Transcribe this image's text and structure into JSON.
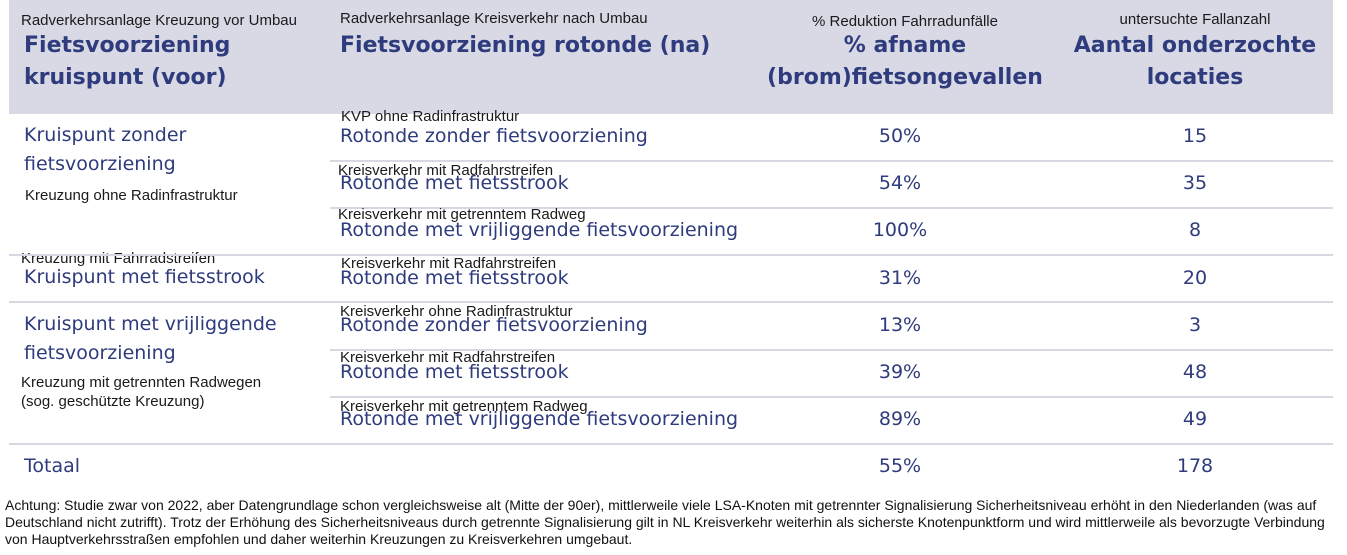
{
  "header": {
    "col1_de": "Radverkehrsanlage Kreuzung vor Umbau",
    "col1_nl_line1": "Fietsvoorziening",
    "col1_nl_line2": "kruispunt (voor)",
    "col2_de": "Radverkehrsanlage Kreisverkehr nach Umbau",
    "col2_nl": "Fietsvoorziening rotonde (na)",
    "col3_de": "% Reduktion Fahrradunfälle",
    "col3_nl_line1": "% afname",
    "col3_nl_line2": "(brom)fietsongevallen",
    "col4_de": "untersuchte Fallanzahl",
    "col4_nl_line1": "Aantal onderzochte",
    "col4_nl_line2": "locaties"
  },
  "groups": [
    {
      "nl_line1": "Kruispunt zonder",
      "nl_line2": "fietsvoorziening",
      "de_line1": "Kreuzung ohne Radinfrastruktur",
      "de_line2": ""
    },
    {
      "nl_line1": "Kruispunt met fietsstrook",
      "nl_line2": "",
      "de_line1": "Kreuzung mit Fahrradstreifen",
      "de_line2": ""
    },
    {
      "nl_line1": "Kruispunt met vrijliggende",
      "nl_line2": "fietsvoorziening",
      "de_line1": "Kreuzung mit getrennten Radwegen",
      "de_line2": "(sog. geschützte Kreuzung)"
    }
  ],
  "rows": [
    {
      "de": "KVP ohne Radinfrastruktur",
      "nl": "Rotonde zonder fietsvoorziening",
      "pct": "50%",
      "n": "15"
    },
    {
      "de": "Kreisverkehr mit Radfahrstreifen",
      "nl": "Rotonde met fietsstrook",
      "pct": "54%",
      "n": "35"
    },
    {
      "de": "Kreisverkehr mit getrenntem Radweg",
      "nl": "Rotonde met vrijliggende fietsvoorziening",
      "pct": "100%",
      "n": "8"
    },
    {
      "de": "Kreisverkehr mit Radfahrstreifen",
      "nl": "Rotonde met fietsstrook",
      "pct": "31%",
      "n": "20"
    },
    {
      "de": "Kreisverkehr ohne Radinfrastruktur",
      "nl": "Rotonde zonder fietsvoorziening",
      "pct": "13%",
      "n": "3"
    },
    {
      "de": "Kreisverkehr mit Radfahrstreifen",
      "nl": "Rotonde met fietsstrook",
      "pct": "39%",
      "n": "48"
    },
    {
      "de": "Kreisverkehr mit getrenntem Radweg",
      "nl": "Rotonde met vrijliggende fietsvoorziening",
      "pct": "89%",
      "n": "49"
    }
  ],
  "total": {
    "label": "Totaal",
    "pct": "55%",
    "n": "178"
  },
  "footnote": "Achtung: Studie zwar von 2022, aber Datengrundlage schon vergleichsweise alt (Mitte der 90er), mittlerweile viele LSA-Knoten mit getrennter Signalisierung Sicherheitsniveau erhöht in den Niederlanden (was auf Deutschland nicht zutrifft). Trotz der Erhöhung des Sicherheitsniveaus durch getrennte Signalisierung gilt in NL Kreisverkehr weiterhin als sicherste Knotenpunktform und wird mittlerweile als bevorzugte Verbindung von Hauptverkehrsstraßen empfohlen und daher weiterhin Kreuzungen zu Kreisverkehren umgebaut."
}
